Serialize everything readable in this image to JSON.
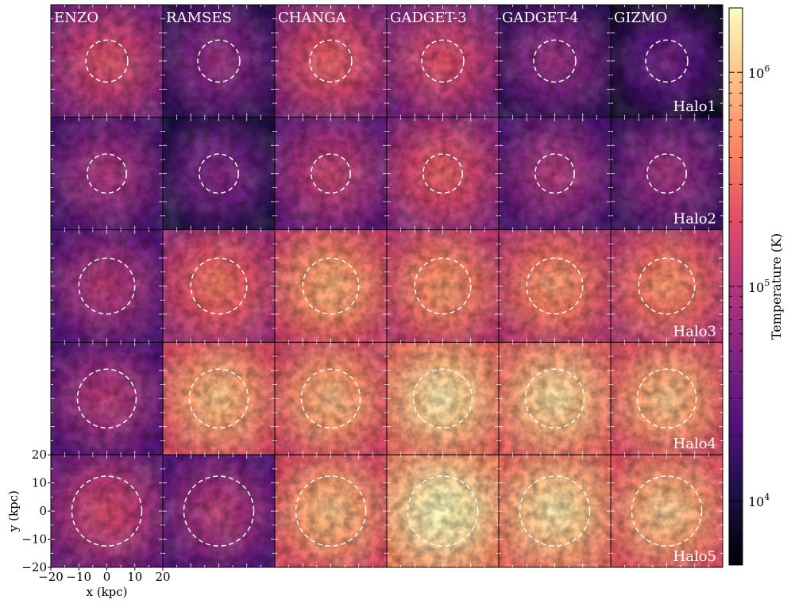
{
  "chart_data": {
    "type": "heatmap",
    "codes": [
      "ENZO",
      "RAMSES",
      "CHANGA",
      "GADGET-3",
      "GADGET-4",
      "GIZMO"
    ],
    "halos": [
      "Halo1",
      "Halo2",
      "Halo3",
      "Halo4",
      "Halo5"
    ],
    "xlabel": "x (kpc)",
    "ylabel": "y (kpc)",
    "xlim": [
      -20,
      20
    ],
    "ylim": [
      -20,
      20
    ],
    "x_ticks": [
      {
        "value": -20,
        "label": "−20"
      },
      {
        "value": -10,
        "label": "−10"
      },
      {
        "value": 0,
        "label": "0"
      },
      {
        "value": 10,
        "label": "10"
      },
      {
        "value": 20,
        "label": "20"
      }
    ],
    "y_ticks": [
      {
        "value": 20,
        "label": "20"
      },
      {
        "value": 10,
        "label": "10"
      },
      {
        "value": 0,
        "label": "0"
      },
      {
        "value": -10,
        "label": "−10"
      },
      {
        "value": -20,
        "label": "−20"
      }
    ],
    "colorbar": {
      "label": "Temperature  (K)",
      "scale": "log",
      "range": [
        5000,
        2000000
      ],
      "colormap": "magma",
      "ticks": [
        {
          "value": 1000000,
          "label": "10",
          "exp": "6"
        },
        {
          "value": 100000,
          "label": "10",
          "exp": "5"
        },
        {
          "value": 10000,
          "label": "10",
          "exp": "4"
        }
      ]
    },
    "circle_radius_kpc": [
      7.5,
      7.0,
      10.0,
      10.5,
      12.5
    ],
    "brightness": [
      [
        0.58,
        0.4,
        0.62,
        0.58,
        0.4,
        0.3
      ],
      [
        0.45,
        0.35,
        0.52,
        0.62,
        0.46,
        0.42
      ],
      [
        0.48,
        0.68,
        0.8,
        0.76,
        0.75,
        0.74
      ],
      [
        0.48,
        0.84,
        0.82,
        0.92,
        0.9,
        0.84
      ],
      [
        0.55,
        0.48,
        0.84,
        0.98,
        0.92,
        0.86
      ]
    ]
  }
}
